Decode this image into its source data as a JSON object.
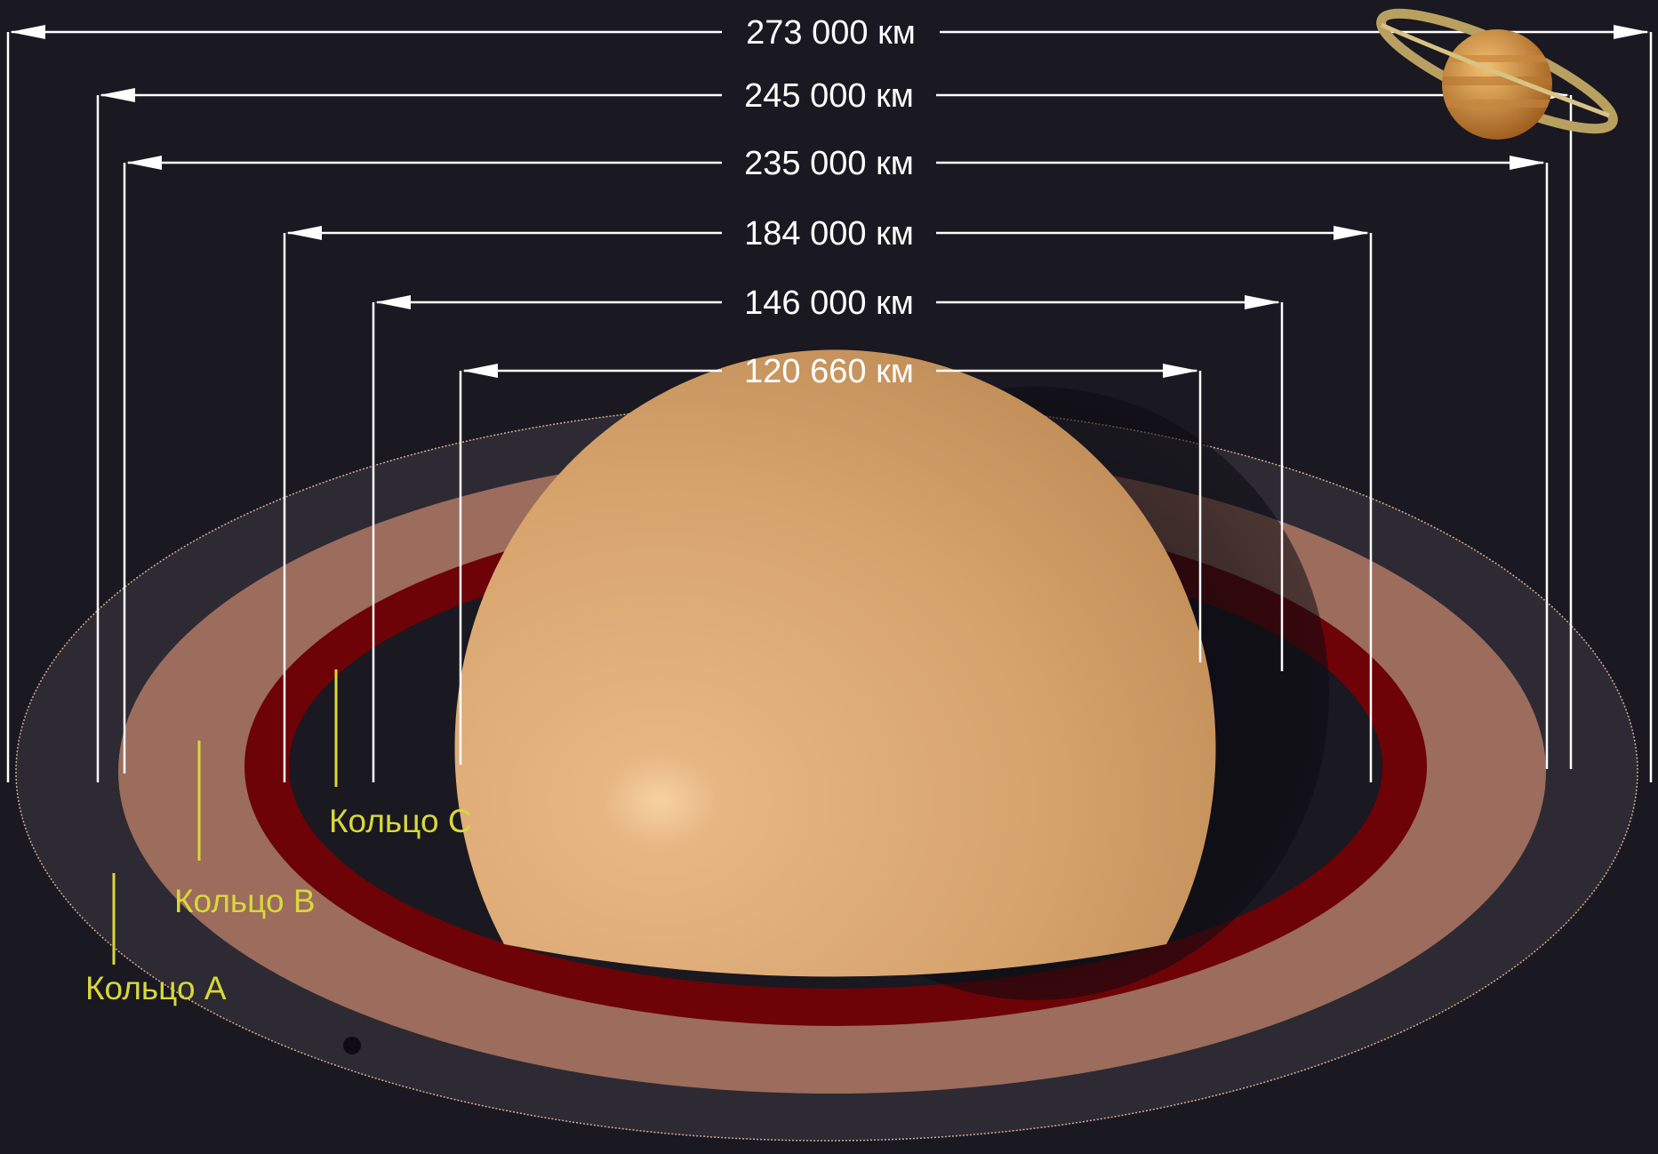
{
  "dimensions": [
    {
      "label": "273 000 км"
    },
    {
      "label": "245 000 км"
    },
    {
      "label": "235 000 км"
    },
    {
      "label": "184 000 км"
    },
    {
      "label": "146 000 км"
    },
    {
      "label": "120 660 км"
    }
  ],
  "rings": {
    "c": "Кольцо C",
    "b": "Кольцо B",
    "a": "Кольцо A"
  },
  "colors": {
    "background": "#1a1821",
    "planet": "#d9a46e",
    "ring_b": "#9c6c5c",
    "ring_c": "#6d0306",
    "ring_a": "#2d2a33",
    "label": "#d8d83a",
    "dimension_line": "#ffffff"
  },
  "icons": {
    "corner": "saturn-icon"
  }
}
